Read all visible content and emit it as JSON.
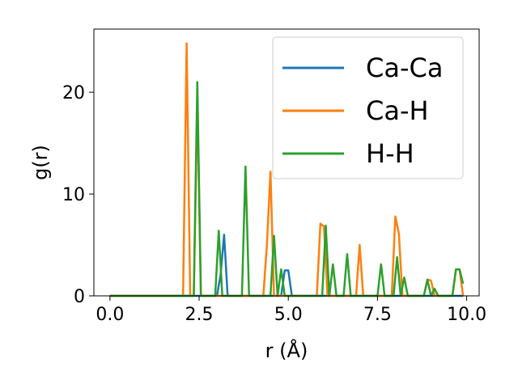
{
  "chart_data": {
    "type": "line",
    "xlabel": "r (Å)",
    "ylabel": "g(r)",
    "xlim": [
      -0.45,
      10.35
    ],
    "ylim": [
      0,
      26.2
    ],
    "xticks": [
      0.0,
      2.5,
      5.0,
      7.5,
      10.0
    ],
    "xtick_labels": [
      "0.0",
      "2.5",
      "5.0",
      "7.5",
      "10.0"
    ],
    "yticks": [
      0,
      10,
      20
    ],
    "ytick_labels": [
      "0",
      "10",
      "20"
    ],
    "grid": false,
    "legend_position": "top-right",
    "series": [
      {
        "name": "Ca-Ca",
        "color": "#1f77b4",
        "x": [
          0.0,
          2.9,
          3.0,
          3.1,
          3.2,
          3.3,
          4.8,
          4.9,
          5.0,
          5.1,
          9.9
        ],
        "y": [
          0,
          0,
          0,
          2,
          6,
          0,
          0,
          2.5,
          2.5,
          0,
          0
        ]
      },
      {
        "name": "Ca-H",
        "color": "#ff7f0e",
        "x": [
          0.0,
          2.05,
          2.15,
          2.25,
          2.35,
          2.45,
          2.55,
          2.65,
          4.3,
          4.4,
          4.5,
          4.6,
          5.8,
          5.9,
          6.0,
          6.1,
          6.9,
          7.0,
          7.1,
          7.9,
          8.0,
          8.1,
          8.2,
          8.8,
          8.9,
          9.0,
          9.1,
          9.6,
          9.7,
          9.8,
          9.9
        ],
        "y": [
          0,
          0,
          24.8,
          0,
          0,
          19.3,
          0,
          0,
          0,
          5,
          12.2,
          0,
          0,
          7.1,
          6.8,
          0,
          0,
          5,
          0,
          0,
          7.8,
          6.1,
          0,
          0,
          1.6,
          1.5,
          0,
          0,
          2.6,
          2.6,
          0
        ]
      },
      {
        "name": "H-H",
        "color": "#2ca02c",
        "x": [
          0.0,
          2.15,
          2.25,
          2.35,
          2.45,
          2.55,
          2.85,
          2.95,
          3.05,
          3.15,
          3.25,
          3.7,
          3.8,
          3.9,
          4.4,
          4.5,
          4.6,
          4.7,
          4.8,
          4.9,
          5.0,
          5.85,
          5.95,
          6.05,
          6.15,
          6.25,
          6.35,
          6.55,
          6.65,
          6.75,
          6.85,
          7.5,
          7.6,
          7.7,
          7.8,
          7.95,
          8.05,
          8.15,
          8.25,
          8.35,
          8.45,
          8.8,
          8.9,
          9.0,
          9.1,
          9.2,
          9.3,
          9.6,
          9.7,
          9.8,
          9.9
        ],
        "y": [
          0,
          0,
          0,
          0,
          21,
          0,
          0,
          0,
          6.4,
          0,
          0,
          0,
          12.7,
          0,
          0,
          0,
          5.9,
          0,
          2.6,
          0,
          0,
          0,
          0,
          6.9,
          0,
          3.1,
          0,
          0,
          4.1,
          0,
          0,
          0,
          3.1,
          0,
          0,
          0,
          3.8,
          0,
          1.8,
          0,
          0,
          0,
          1.6,
          0,
          0.7,
          0,
          0,
          0,
          2.6,
          2.6,
          1.2
        ]
      }
    ]
  }
}
